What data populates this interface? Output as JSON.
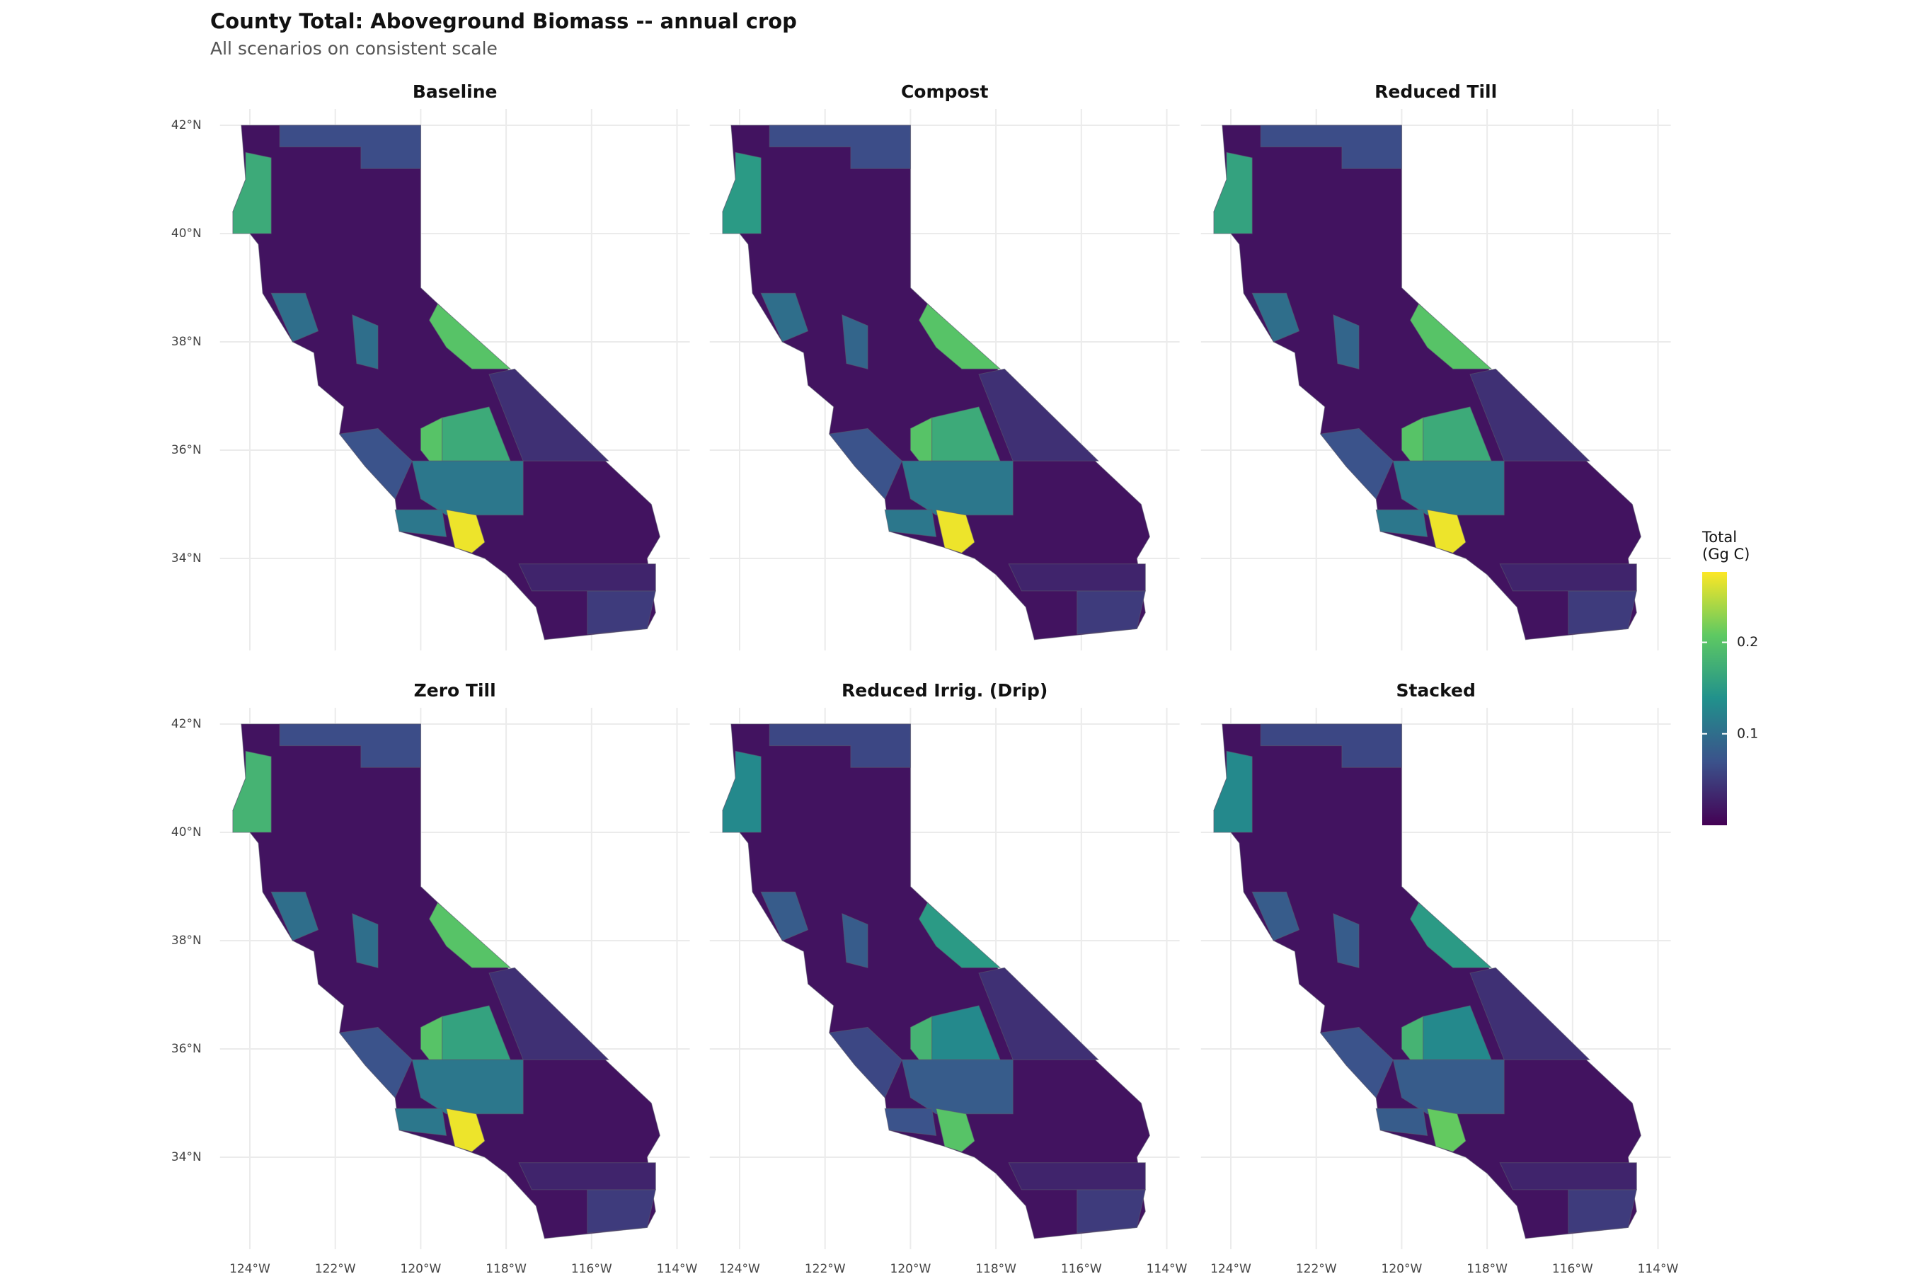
{
  "chart_data": {
    "type": "choropleth",
    "title": "County Total: Aboveground Biomass -- annual crop",
    "subtitle": "All scenarios on consistent scale",
    "legend_title": [
      "Total",
      "(Gg C)"
    ],
    "clim": [
      0,
      0.277
    ],
    "cticks": [
      0.1,
      0.2
    ],
    "colormap": [
      "#440154",
      "#3b528b",
      "#21918c",
      "#5ec962",
      "#fde725"
    ],
    "xlim": [
      -124.7,
      -113.7
    ],
    "ylim": [
      32.3,
      42.3
    ],
    "xticks": [
      {
        "value": -124,
        "label": "124°W"
      },
      {
        "value": -122,
        "label": "122°W"
      },
      {
        "value": -120,
        "label": "120°W"
      },
      {
        "value": -118,
        "label": "118°W"
      },
      {
        "value": -116,
        "label": "116°W"
      },
      {
        "value": -114,
        "label": "114°W"
      }
    ],
    "yticks": [
      {
        "value": 34,
        "label": "34°N"
      },
      {
        "value": 36,
        "label": "36°N"
      },
      {
        "value": 38,
        "label": "38°N"
      },
      {
        "value": 40,
        "label": "40°N"
      },
      {
        "value": 42,
        "label": "42°N"
      }
    ],
    "grid": true,
    "panels": [
      {
        "title": "Baseline",
        "values": [
          0.015,
          0.17,
          0.065,
          0.2,
          0.17,
          0.2,
          0.11,
          0.11,
          0.27,
          0.07,
          0.1,
          0.1,
          0.05,
          0.03,
          0.04
        ]
      },
      {
        "title": "Compost",
        "values": [
          0.015,
          0.15,
          0.065,
          0.2,
          0.17,
          0.2,
          0.11,
          0.11,
          0.27,
          0.07,
          0.1,
          0.09,
          0.05,
          0.03,
          0.04
        ]
      },
      {
        "title": "Reduced Till",
        "values": [
          0.015,
          0.16,
          0.065,
          0.2,
          0.17,
          0.2,
          0.11,
          0.11,
          0.27,
          0.07,
          0.1,
          0.09,
          0.05,
          0.03,
          0.04
        ]
      },
      {
        "title": "Zero Till",
        "values": [
          0.015,
          0.18,
          0.065,
          0.2,
          0.16,
          0.2,
          0.11,
          0.11,
          0.27,
          0.07,
          0.1,
          0.1,
          0.05,
          0.03,
          0.04
        ]
      },
      {
        "title": "Reduced Irrig. (Drip)",
        "values": [
          0.015,
          0.13,
          0.06,
          0.15,
          0.13,
          0.18,
          0.08,
          0.07,
          0.2,
          0.06,
          0.08,
          0.08,
          0.05,
          0.03,
          0.04
        ]
      },
      {
        "title": "Stacked",
        "values": [
          0.015,
          0.13,
          0.06,
          0.15,
          0.13,
          0.18,
          0.08,
          0.08,
          0.21,
          0.07,
          0.08,
          0.08,
          0.05,
          0.03,
          0.04
        ]
      }
    ]
  }
}
